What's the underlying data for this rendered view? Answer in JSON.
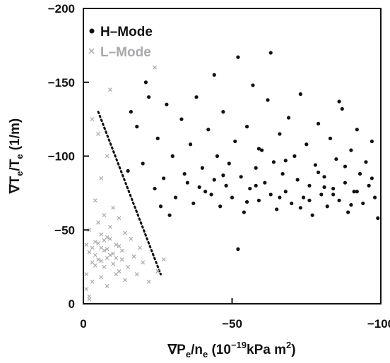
{
  "chart_data": {
    "type": "scatter",
    "title": "",
    "xlabel": {
      "prefix": "∇P",
      "sub1": "e",
      "mid": "/n",
      "sub2": "e",
      "units_a": " (10",
      "sup": "−19",
      "units_b": "kPa m",
      "sup2": "2",
      "close": ")"
    },
    "ylabel": {
      "prefix": "∇T",
      "sub1": "e",
      "mid": "/T",
      "sub2": "e",
      "units": " (1/m)"
    },
    "xlim": [
      0,
      -100
    ],
    "ylim": [
      0,
      -200
    ],
    "x_ticks": [
      {
        "value": 0,
        "label": "0"
      },
      {
        "value": -50,
        "label": "−50"
      },
      {
        "value": -100,
        "label": "−100"
      }
    ],
    "y_ticks": [
      {
        "value": 0,
        "label": "0"
      },
      {
        "value": -50,
        "label": "−50"
      },
      {
        "value": -100,
        "label": "−100"
      },
      {
        "value": -150,
        "label": "−150"
      },
      {
        "value": -200,
        "label": "−200"
      }
    ],
    "grid": false,
    "legend_position": "top-left",
    "series": [
      {
        "name": "H–Mode",
        "marker": "dot",
        "color": "#111111",
        "points": [
          [
            -15,
            -90
          ],
          [
            -16,
            -130
          ],
          [
            -18,
            -120
          ],
          [
            -20,
            -95
          ],
          [
            -22,
            -140
          ],
          [
            -24,
            -78
          ],
          [
            -25,
            -112
          ],
          [
            -27,
            -85
          ],
          [
            -28,
            -135
          ],
          [
            -30,
            -100
          ],
          [
            -31,
            -72
          ],
          [
            -33,
            -125
          ],
          [
            -34,
            -88
          ],
          [
            -36,
            -108
          ],
          [
            -37,
            -68
          ],
          [
            -38,
            -140
          ],
          [
            -40,
            -92
          ],
          [
            -41,
            -76
          ],
          [
            -42,
            -118
          ],
          [
            -44,
            -84
          ],
          [
            -45,
            -100
          ],
          [
            -46,
            -66
          ],
          [
            -47,
            -130
          ],
          [
            -48,
            -80
          ],
          [
            -49,
            -95
          ],
          [
            -50,
            -72
          ],
          [
            -51,
            -110
          ],
          [
            -52,
            -167
          ],
          [
            -53,
            -86
          ],
          [
            -54,
            -62
          ],
          [
            -55,
            -120
          ],
          [
            -56,
            -78
          ],
          [
            -57,
            -148
          ],
          [
            -58,
            -92
          ],
          [
            -59,
            -70
          ],
          [
            -60,
            -104
          ],
          [
            -61,
            -82
          ],
          [
            -62,
            -138
          ],
          [
            -63,
            -74
          ],
          [
            -64,
            -96
          ],
          [
            -65,
            -64
          ],
          [
            -66,
            -115
          ],
          [
            -67,
            -88
          ],
          [
            -68,
            -76
          ],
          [
            -69,
            -126
          ],
          [
            -70,
            -68
          ],
          [
            -71,
            -100
          ],
          [
            -72,
            -84
          ],
          [
            -73,
            -142
          ],
          [
            -74,
            -72
          ],
          [
            -75,
            -108
          ],
          [
            -76,
            -80
          ],
          [
            -77,
            -60
          ],
          [
            -78,
            -94
          ],
          [
            -79,
            -122
          ],
          [
            -80,
            -74
          ],
          [
            -81,
            -86
          ],
          [
            -82,
            -66
          ],
          [
            -83,
            -112
          ],
          [
            -84,
            -78
          ],
          [
            -85,
            -98
          ],
          [
            -86,
            -70
          ],
          [
            -87,
            -132
          ],
          [
            -88,
            -82
          ],
          [
            -89,
            -62
          ],
          [
            -90,
            -104
          ],
          [
            -91,
            -76
          ],
          [
            -92,
            -118
          ],
          [
            -93,
            -88
          ],
          [
            -94,
            -68
          ],
          [
            -95,
            -96
          ],
          [
            -96,
            -80
          ],
          [
            -97,
            -110
          ],
          [
            -98,
            -72
          ],
          [
            -99,
            -58
          ],
          [
            -35,
            -82
          ],
          [
            -43,
            -74
          ],
          [
            -58,
            -80
          ],
          [
            -66,
            -72
          ],
          [
            -76,
            -70
          ],
          [
            -84,
            -74
          ],
          [
            -92,
            -76
          ],
          [
            -52,
            -37
          ],
          [
            -29,
            -60
          ],
          [
            -26,
            -66
          ],
          [
            -21,
            -150
          ],
          [
            -63,
            -170
          ],
          [
            -86,
            -137
          ],
          [
            -44,
            -155
          ],
          [
            -59,
            -105
          ],
          [
            -68,
            -97
          ],
          [
            -79,
            -89
          ],
          [
            -88,
            -93
          ],
          [
            -97,
            -85
          ],
          [
            -39,
            -79
          ],
          [
            -47,
            -87
          ],
          [
            -55,
            -69
          ],
          [
            -73,
            -65
          ],
          [
            -81,
            -79
          ],
          [
            -90,
            -67
          ]
        ]
      },
      {
        "name": "L–Mode",
        "marker": "x",
        "color": "#a7a9ac",
        "points": [
          [
            -1,
            -20
          ],
          [
            -2,
            -35
          ],
          [
            -3,
            -28
          ],
          [
            -4,
            -42
          ],
          [
            -5,
            -30
          ],
          [
            -6,
            -38
          ],
          [
            -7,
            -25
          ],
          [
            -8,
            -45
          ],
          [
            -9,
            -33
          ],
          [
            -10,
            -27
          ],
          [
            -11,
            -40
          ],
          [
            -12,
            -22
          ],
          [
            -13,
            -36
          ],
          [
            -14,
            -48
          ],
          [
            -2,
            -50
          ],
          [
            -3,
            -15
          ],
          [
            -5,
            -55
          ],
          [
            -6,
            -18
          ],
          [
            -7,
            -60
          ],
          [
            -8,
            -12
          ],
          [
            -9,
            -52
          ],
          [
            -10,
            -65
          ],
          [
            -11,
            -20
          ],
          [
            -12,
            -58
          ],
          [
            -13,
            -30
          ],
          [
            -15,
            -25
          ],
          [
            -16,
            -44
          ],
          [
            -17,
            -32
          ],
          [
            -18,
            -20
          ],
          [
            -19,
            -38
          ],
          [
            -20,
            -28
          ],
          [
            -4,
            -70
          ],
          [
            -6,
            -85
          ],
          [
            -8,
            -100
          ],
          [
            -3,
            -125
          ],
          [
            -9,
            -145
          ],
          [
            -5,
            -115
          ],
          [
            -24,
            -160
          ],
          [
            -1,
            -10
          ],
          [
            -2,
            -5
          ],
          [
            -1,
            -40
          ],
          [
            -4,
            -33
          ],
          [
            -5,
            -41
          ],
          [
            -6,
            -29
          ],
          [
            -7,
            -36
          ],
          [
            -8,
            -31
          ],
          [
            -9,
            -44
          ],
          [
            -10,
            -34
          ],
          [
            -3,
            -38
          ],
          [
            -4,
            -26
          ],
          [
            -6,
            -47
          ],
          [
            -7,
            -43
          ],
          [
            -8,
            -37
          ],
          [
            -11,
            -31
          ],
          [
            -12,
            -39
          ],
          [
            -2,
            -3
          ],
          [
            -14,
            -16
          ],
          [
            -22,
            -15
          ],
          [
            -25,
            -22
          ],
          [
            -27,
            -30
          ]
        ]
      }
    ],
    "boundary_line": {
      "style": "dotted",
      "color": "#111111",
      "points": [
        [
          -5,
          -130
        ],
        [
          -26,
          -20
        ]
      ]
    }
  }
}
